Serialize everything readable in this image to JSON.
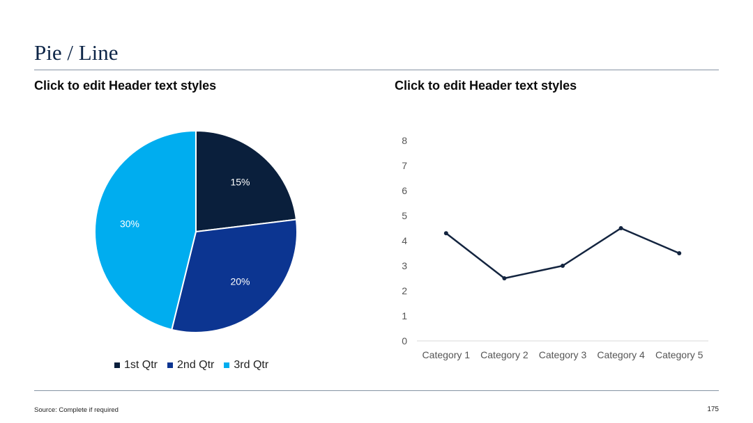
{
  "slide": {
    "title": "Pie / Line",
    "left_header": "Click to edit Header text styles",
    "right_header": "Click to edit Header text styles",
    "source": "Source: Complete if required",
    "page_number": "175"
  },
  "chart_data": [
    {
      "type": "pie",
      "categories": [
        "1st Qtr",
        "2nd Qtr",
        "3rd Qtr"
      ],
      "values": [
        15,
        20,
        30
      ],
      "data_labels": [
        "15%",
        "20%",
        "30%"
      ],
      "colors": [
        "#0a1f3c",
        "#0c3591",
        "#00adef"
      ],
      "legend": "bottom"
    },
    {
      "type": "line",
      "categories": [
        "Category 1",
        "Category 2",
        "Category 3",
        "Category 4",
        "Category 5"
      ],
      "series": [
        {
          "values": [
            4.3,
            2.5,
            3.0,
            4.5,
            3.5
          ]
        }
      ],
      "yticks": [
        "0",
        "1",
        "2",
        "3",
        "4",
        "5",
        "6",
        "7",
        "8"
      ],
      "ylim": [
        0,
        8
      ],
      "grid": false,
      "color": "#13243f"
    }
  ]
}
